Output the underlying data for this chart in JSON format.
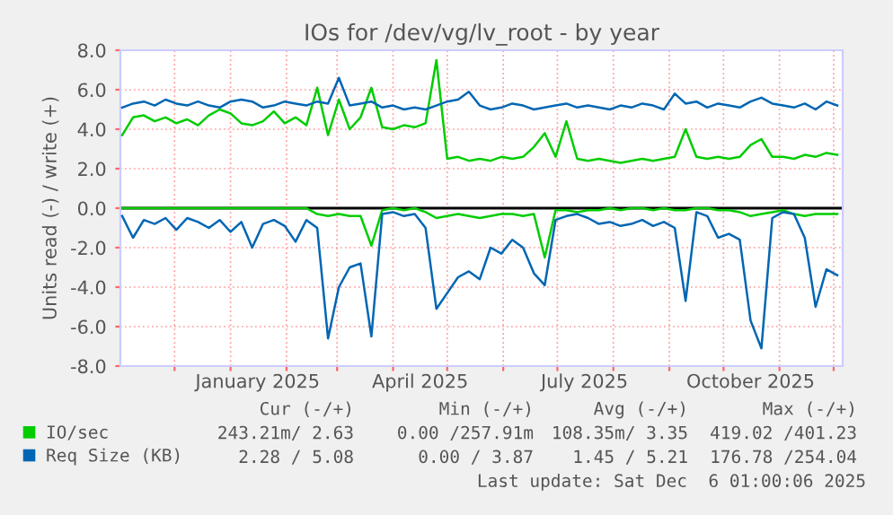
{
  "chart_data": {
    "type": "line",
    "title": "IOs for /dev/vg/lv_root - by year",
    "ylabel": "Units read (-) / write (+)",
    "x": [
      "2024-11-02",
      "2024-11-08",
      "2024-11-14",
      "2024-11-20",
      "2024-11-26",
      "2024-12-02",
      "2024-12-08",
      "2024-12-14",
      "2024-12-20",
      "2024-12-26",
      "2025-01-01",
      "2025-01-07",
      "2025-01-13",
      "2025-01-19",
      "2025-01-25",
      "2025-01-31",
      "2025-02-06",
      "2025-02-12",
      "2025-02-18",
      "2025-02-24",
      "2025-03-02",
      "2025-03-08",
      "2025-03-14",
      "2025-03-20",
      "2025-03-26",
      "2025-04-01",
      "2025-04-07",
      "2025-04-13",
      "2025-04-19",
      "2025-04-25",
      "2025-05-01",
      "2025-05-07",
      "2025-05-13",
      "2025-05-19",
      "2025-05-25",
      "2025-05-31",
      "2025-06-06",
      "2025-06-12",
      "2025-06-18",
      "2025-06-24",
      "2025-06-30",
      "2025-07-06",
      "2025-07-12",
      "2025-07-18",
      "2025-07-24",
      "2025-07-30",
      "2025-08-05",
      "2025-08-11",
      "2025-08-17",
      "2025-08-23",
      "2025-08-29",
      "2025-09-04",
      "2025-09-10",
      "2025-09-16",
      "2025-09-22",
      "2025-09-28",
      "2025-10-04",
      "2025-10-10",
      "2025-10-16",
      "2025-10-22",
      "2025-10-28",
      "2025-11-03",
      "2025-11-09",
      "2025-11-15",
      "2025-11-21",
      "2025-11-27",
      "2025-12-03"
    ],
    "series": [
      {
        "name": "IO/sec",
        "color": "#00cc00",
        "values": [
          3.7,
          4.6,
          4.7,
          4.4,
          4.6,
          4.3,
          4.5,
          4.2,
          4.7,
          5.0,
          4.8,
          4.3,
          4.2,
          4.4,
          4.9,
          4.3,
          4.6,
          4.2,
          6.1,
          3.7,
          5.5,
          4.0,
          4.6,
          6.1,
          4.1,
          4.0,
          4.2,
          4.1,
          4.3,
          7.5,
          2.5,
          2.6,
          2.4,
          2.5,
          2.4,
          2.6,
          2.5,
          2.6,
          3.1,
          3.8,
          2.6,
          4.4,
          2.5,
          2.4,
          2.5,
          2.4,
          2.3,
          2.4,
          2.5,
          2.4,
          2.5,
          2.6,
          4.0,
          2.6,
          2.5,
          2.6,
          2.5,
          2.6,
          3.2,
          3.5,
          2.6,
          2.6,
          2.5,
          2.7,
          2.6,
          2.8,
          2.7
        ]
      },
      {
        "color": "#00cc00",
        "values": [
          0,
          0,
          0,
          0,
          0,
          0,
          0,
          0,
          0,
          0,
          0,
          0,
          0,
          0,
          0,
          0,
          0,
          0,
          -0.3,
          -0.4,
          -0.3,
          -0.4,
          -0.4,
          -1.9,
          -0.1,
          0,
          -0.1,
          0,
          -0.2,
          -0.5,
          -0.4,
          -0.3,
          -0.4,
          -0.5,
          -0.4,
          -0.3,
          -0.3,
          -0.4,
          -0.3,
          -2.5,
          -0.1,
          -0.1,
          -0.2,
          -0.1,
          -0.1,
          0,
          -0.1,
          0,
          0,
          -0.1,
          0,
          -0.1,
          -0.1,
          0,
          0,
          -0.1,
          -0.1,
          -0.2,
          -0.4,
          -0.3,
          -0.2,
          -0.1,
          -0.3,
          -0.4,
          -0.3,
          -0.3,
          -0.3
        ]
      },
      {
        "name": "Req Size (KB)",
        "color": "#0066b3",
        "values": [
          5.1,
          5.3,
          5.4,
          5.2,
          5.5,
          5.3,
          5.2,
          5.4,
          5.2,
          5.1,
          5.4,
          5.5,
          5.4,
          5.1,
          5.2,
          5.4,
          5.3,
          5.2,
          5.4,
          5.3,
          6.6,
          5.2,
          5.3,
          5.4,
          5.1,
          5.2,
          5.0,
          5.1,
          5.0,
          5.2,
          5.4,
          5.5,
          5.9,
          5.2,
          5.0,
          5.1,
          5.3,
          5.2,
          5.0,
          5.1,
          5.2,
          5.3,
          5.1,
          5.2,
          5.1,
          5.0,
          5.2,
          5.1,
          5.3,
          5.2,
          5.0,
          5.8,
          5.3,
          5.4,
          5.1,
          5.3,
          5.2,
          5.1,
          5.4,
          5.6,
          5.3,
          5.2,
          5.1,
          5.3,
          5.0,
          5.4,
          5.2
        ]
      },
      {
        "color": "#0066b3",
        "values": [
          -0.4,
          -1.5,
          -0.6,
          -0.8,
          -0.5,
          -1.1,
          -0.5,
          -0.7,
          -1.0,
          -0.6,
          -1.2,
          -0.7,
          -2.0,
          -0.8,
          -0.6,
          -0.9,
          -1.7,
          -0.6,
          -1.0,
          -6.6,
          -4.0,
          -3.0,
          -2.8,
          -6.5,
          -0.3,
          -0.2,
          -0.4,
          -0.3,
          -1.0,
          -5.1,
          -4.3,
          -3.5,
          -3.2,
          -3.6,
          -2.0,
          -2.3,
          -1.6,
          -2.0,
          -3.3,
          -3.9,
          -0.6,
          -0.4,
          -0.3,
          -0.5,
          -0.8,
          -0.7,
          -0.9,
          -0.8,
          -0.6,
          -0.9,
          -0.7,
          -1.0,
          -4.7,
          -0.2,
          -0.4,
          -1.5,
          -1.3,
          -1.6,
          -5.7,
          -7.1,
          -0.5,
          -0.2,
          -0.3,
          -1.5,
          -5.0,
          -3.1,
          -3.4
        ]
      }
    ],
    "xlim": [
      "2024-11-01",
      "2025-12-06"
    ],
    "xticks": [
      {
        "value": "2024-12-01",
        "label": null
      },
      {
        "value": "2025-01-01",
        "label": null
      },
      {
        "value": "2025-01-16",
        "label": "January 2025"
      },
      {
        "value": "2025-02-01",
        "label": null
      },
      {
        "value": "2025-03-01",
        "label": null
      },
      {
        "value": "2025-04-01",
        "label": null
      },
      {
        "value": "2025-04-16",
        "label": "April 2025"
      },
      {
        "value": "2025-05-01",
        "label": null
      },
      {
        "value": "2025-06-01",
        "label": null
      },
      {
        "value": "2025-07-01",
        "label": null
      },
      {
        "value": "2025-07-16",
        "label": "July 2025"
      },
      {
        "value": "2025-08-01",
        "label": null
      },
      {
        "value": "2025-09-01",
        "label": null
      },
      {
        "value": "2025-10-01",
        "label": null
      },
      {
        "value": "2025-10-16",
        "label": "October 2025"
      },
      {
        "value": "2025-11-01",
        "label": null
      },
      {
        "value": "2025-12-01",
        "label": null
      }
    ],
    "ylim": [
      -8,
      8
    ],
    "yticks": [
      {
        "value": -8,
        "label": "-8.0"
      },
      {
        "value": -6,
        "label": "-6.0"
      },
      {
        "value": -4,
        "label": "-4.0"
      },
      {
        "value": -2,
        "label": "-2.0"
      },
      {
        "value": 0,
        "label": "0.0"
      },
      {
        "value": 2,
        "label": "2.0"
      },
      {
        "value": 4,
        "label": "4.0"
      },
      {
        "value": 6,
        "label": "6.0"
      },
      {
        "value": 8,
        "label": "8.0"
      }
    ],
    "grid": true,
    "legend": "bottom",
    "ref_lines": [
      {
        "axis": "y",
        "value": 0,
        "color": "#000000"
      }
    ],
    "annotations": [
      "Cur (-/+)",
      "Min (-/+)",
      "Avg (-/+)",
      "Max (-/+)",
      "243.21m/ 2.63",
      "0.00 /257.91m",
      "108.35m/ 3.35",
      "419.02 /401.23",
      "2.28 / 5.08",
      "0.00 / 3.87",
      "1.45 / 5.21",
      "176.78 /254.04",
      "Last update: Sat Dec  6 01:00:06 2025"
    ]
  }
}
